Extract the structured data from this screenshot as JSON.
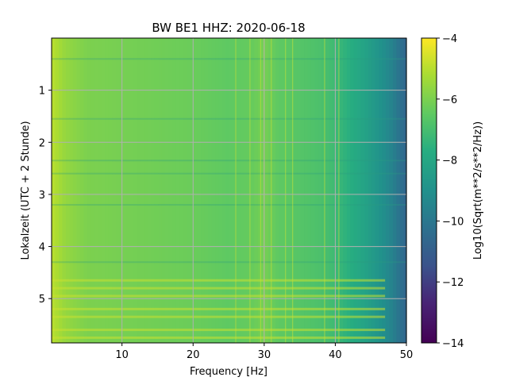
{
  "chart_data": {
    "type": "heatmap",
    "title": "BW BE1  HHZ: 2020-06-18",
    "xlabel": "Frequency [Hz]",
    "ylabel": "Lokalzeit (UTC + 2 Stunde)",
    "xlim": [
      0.1,
      50
    ],
    "ylim": [
      5.85,
      0.0
    ],
    "x_ticks": [
      10,
      20,
      30,
      40,
      50
    ],
    "x_tick_labels": [
      "10",
      "20",
      "30",
      "40",
      "50"
    ],
    "y_ticks": [
      1,
      2,
      3,
      4,
      5
    ],
    "y_tick_labels": [
      "1",
      "2",
      "3",
      "4",
      "5"
    ],
    "grid": true,
    "grid_color": "#b0b0b0",
    "colormap": "viridis",
    "colorbar": {
      "label": "Log10(Sqrt(m**2/s**2/Hz))",
      "range": [
        -14,
        -4
      ],
      "ticks": [
        -14,
        -12,
        -10,
        -8,
        -6,
        -4
      ],
      "tick_labels": [
        "−14",
        "−12",
        "−10",
        "−8",
        "−6",
        "−4"
      ]
    },
    "spectrum_profile": {
      "frequency_hz": [
        0.1,
        2,
        5,
        10,
        15,
        20,
        25,
        28,
        30,
        32,
        35,
        38,
        40,
        42,
        44,
        46,
        47,
        48,
        49,
        50
      ],
      "level": [
        -5.0,
        -5.6,
        -6.0,
        -6.1,
        -6.2,
        -6.3,
        -6.5,
        -6.4,
        -6.1,
        -6.5,
        -6.7,
        -6.9,
        -7.2,
        -7.7,
        -8.2,
        -8.8,
        -9.2,
        -9.6,
        -10.2,
        -10.8
      ]
    },
    "notable_features": {
      "vertical_lines_hz": [
        26,
        28,
        29.5,
        30,
        31,
        33,
        34,
        38.5,
        40.5
      ],
      "bright_rows_hours": [
        4.65,
        4.8,
        4.95,
        5.2,
        5.35,
        5.6,
        5.75
      ],
      "dark_rows_hours": [
        0.4,
        1.55,
        2.35,
        2.6,
        3.2,
        4.3
      ]
    }
  }
}
